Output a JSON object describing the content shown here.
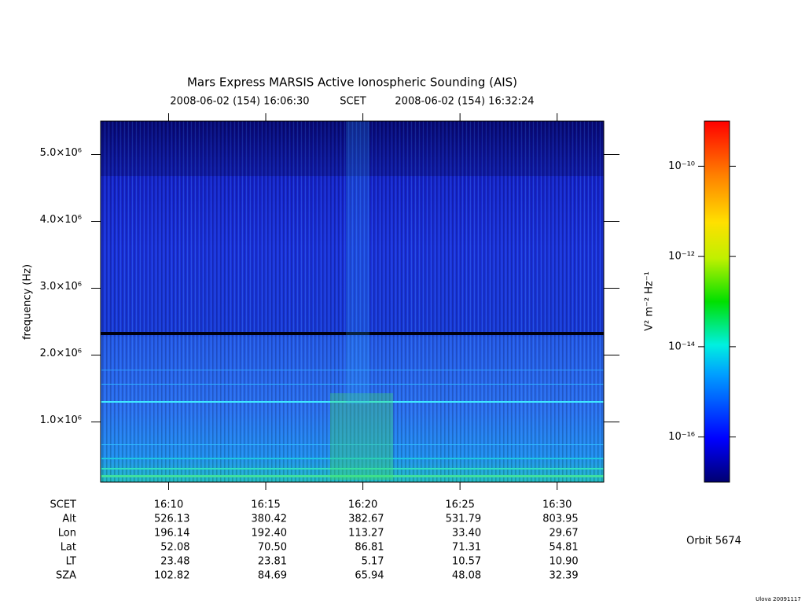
{
  "chart_data": {
    "type": "spectrogram",
    "title": "Mars Express MARSIS Active Ionospheric Sounding (AIS)",
    "start_time": "2008-06-02 (154) 16:06:30",
    "time_system": "SCET",
    "end_time": "2008-06-02 (154) 16:32:24",
    "ylabel": "frequency (Hz)",
    "xlim": [
      966.5,
      992.4
    ],
    "xticks": [
      {
        "value": 970,
        "label": "16:10"
      },
      {
        "value": 975,
        "label": "16:15"
      },
      {
        "value": 980,
        "label": "16:20"
      },
      {
        "value": 985,
        "label": "16:25"
      },
      {
        "value": 990,
        "label": "16:30"
      }
    ],
    "ylim": [
      100000,
      5500000
    ],
    "yticks": [
      {
        "value": 1000000,
        "label": "1.0×10⁶"
      },
      {
        "value": 2000000,
        "label": "2.0×10⁶"
      },
      {
        "value": 3000000,
        "label": "3.0×10⁶"
      },
      {
        "value": 4000000,
        "label": "4.0×10⁶"
      },
      {
        "value": 5000000,
        "label": "5.0×10⁶"
      }
    ],
    "colorbar": {
      "label": "V² m⁻² Hz⁻¹",
      "scale": "log",
      "lim": [
        1e-17,
        1e-09
      ],
      "ticks": [
        {
          "value": 1e-10,
          "label": "10⁻¹⁰"
        },
        {
          "value": 1e-12,
          "label": "10⁻¹²"
        },
        {
          "value": 1e-14,
          "label": "10⁻¹⁴"
        },
        {
          "value": 1e-16,
          "label": "10⁻¹⁶"
        }
      ]
    },
    "ephemeris": {
      "header": "SCET",
      "rows": [
        {
          "name": "Alt",
          "values": [
            "526.13",
            "380.42",
            "382.67",
            "531.79",
            "803.95"
          ]
        },
        {
          "name": "Lon",
          "values": [
            "196.14",
            "192.40",
            "113.27",
            "33.40",
            "29.67"
          ]
        },
        {
          "name": "Lat",
          "values": [
            "52.08",
            "70.50",
            "86.81",
            "71.31",
            "54.81"
          ]
        },
        {
          "name": "LT",
          "values": [
            "23.48",
            "23.81",
            "5.17",
            "10.57",
            "10.90"
          ]
        },
        {
          "name": "SZA",
          "values": [
            "102.82",
            "84.69",
            "65.94",
            "48.08",
            "32.39"
          ]
        }
      ]
    },
    "orbit": "Orbit 5674",
    "footer": "Ulova 20091117"
  }
}
